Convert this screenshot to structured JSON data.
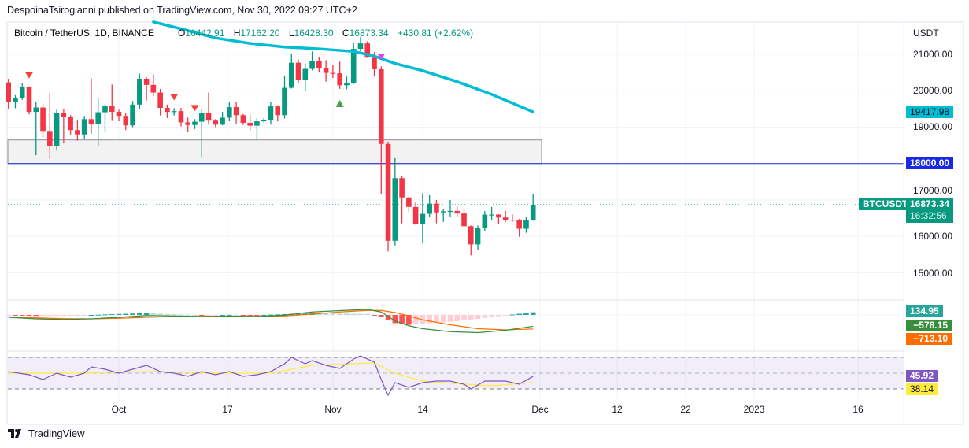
{
  "header": {
    "published": "DespoinaTsirogianni published on TradingView.com, Nov 30, 2022 09:27 UTC+2"
  },
  "legend": {
    "symbol": "Bitcoin / TetherUS, 1D, BINANCE",
    "o_label": "O",
    "o": "16442.91",
    "h_label": "H",
    "h": "17162.20",
    "l_label": "L",
    "l": "16428.30",
    "c_label": "C",
    "c": "16873.34",
    "change": "+430.81 (+2.62%)"
  },
  "axis": {
    "currency": "USDT",
    "price_ticks": [
      "21000.00",
      "20000.00",
      "19000.00",
      "17000.00",
      "16000.00",
      "15000.00"
    ],
    "date_ticks": [
      "Oct",
      "17",
      "Nov",
      "14",
      "Dec",
      "12",
      "22",
      "2023",
      "16"
    ]
  },
  "badges": {
    "ma": "19417.98",
    "level": "18000.00",
    "symbol": "BTCUSDT",
    "price": "16873.34",
    "countdown": "16:32:56",
    "macd_hist": "134.95",
    "macd": "−578.15",
    "macd_signal": "−713.10",
    "rsi": "45.92",
    "rsi_ma": "38.14"
  },
  "colors": {
    "up": "#089981",
    "down": "#f23645",
    "ma": "#00bcd4",
    "level": "#1929e6",
    "macd": "#388e3c",
    "signal": "#ff6d00",
    "rsi": "#7e57c2",
    "rsi_ma": "#ffeb3b",
    "hist_up": "#26a69a",
    "hist_down": "#ff5252"
  },
  "footer": {
    "brand": "TradingView"
  },
  "chart_data": {
    "type": "candlestick",
    "title": "Bitcoin / TetherUS, 1D, BINANCE",
    "start_date": "2022-09-15",
    "ylabel": "USDT",
    "ylim": [
      14500,
      21900
    ],
    "open": [
      20230,
      19700,
      19800,
      20110,
      19420,
      19540,
      18875,
      18480,
      19400,
      19290,
      18920,
      18800,
      19220,
      19080,
      19410,
      19590,
      19420,
      19310,
      19050,
      19620,
      20330,
      20160,
      19950,
      19530,
      19420,
      19440,
      19130,
      19060,
      19150,
      19380,
      19180,
      19070,
      19260,
      19550,
      19330,
      19120,
      19040,
      19160,
      19200,
      19570,
      19330,
      20080,
      20770,
      20290,
      20600,
      20810,
      20630,
      20490,
      20480,
      20150,
      20210,
      21150,
      21300,
      20910,
      20590,
      18540,
      15880,
      17600,
      17070,
      16810,
      16330,
      16620,
      16900,
      16660,
      16690,
      16700,
      16630,
      16280,
      15780,
      16230,
      16600,
      16600,
      16520,
      16460,
      16440,
      16210,
      16442.91
    ],
    "high": [
      20330,
      19880,
      20210,
      20120,
      19680,
      19640,
      19950,
      19480,
      19500,
      19330,
      19180,
      19310,
      20340,
      19790,
      19640,
      20170,
      19480,
      19400,
      19720,
      20470,
      20370,
      20450,
      20050,
      19620,
      19520,
      19530,
      19260,
      19220,
      19500,
      19950,
      19220,
      19420,
      19680,
      19700,
      19360,
      19350,
      19250,
      19250,
      19700,
      19600,
      20420,
      21020,
      20860,
      20750,
      21080,
      20930,
      20840,
      20700,
      20800,
      20390,
      21300,
      21480,
      21360,
      21060,
      20670,
      18600,
      18150,
      17650,
      17090,
      16950,
      17190,
      17130,
      17000,
      16750,
      17000,
      16820,
      16730,
      16300,
      16300,
      16700,
      16810,
      16610,
      16700,
      16600,
      16480,
      16530,
      17162.2
    ],
    "low": [
      19500,
      19520,
      19750,
      19350,
      18230,
      18720,
      18130,
      18360,
      18560,
      18800,
      18630,
      18680,
      18820,
      18470,
      18850,
      19170,
      19160,
      18920,
      19000,
      19500,
      19730,
      19850,
      19320,
      19250,
      19320,
      19020,
      18860,
      18950,
      18190,
      19070,
      19000,
      19050,
      19160,
      19100,
      19060,
      18900,
      18650,
      19130,
      19070,
      19160,
      19240,
      20060,
      20200,
      20000,
      20560,
      20500,
      20250,
      20350,
      20050,
      20040,
      20180,
      21080,
      20900,
      20390,
      17170,
      15590,
      15750,
      16360,
      16670,
      16320,
      15820,
      16530,
      16360,
      16400,
      16540,
      16540,
      16260,
      15480,
      15620,
      16160,
      16460,
      16350,
      16400,
      16400,
      15990,
      16100,
      16428.3
    ],
    "close": [
      19700,
      19800,
      20110,
      19420,
      19540,
      18875,
      18480,
      19400,
      19290,
      18920,
      18800,
      19220,
      19080,
      19410,
      19590,
      19420,
      19310,
      19050,
      19620,
      20330,
      20160,
      19950,
      19530,
      19420,
      19440,
      19130,
      19060,
      19150,
      19380,
      19180,
      19070,
      19260,
      19550,
      19330,
      19120,
      19040,
      19160,
      19200,
      19570,
      19330,
      20080,
      20770,
      20290,
      20600,
      20810,
      20630,
      20490,
      20480,
      20150,
      20210,
      21150,
      21300,
      20910,
      20590,
      18540,
      15880,
      17600,
      17070,
      16810,
      16330,
      16620,
      16900,
      16660,
      16690,
      16700,
      16630,
      16280,
      15780,
      16230,
      16600,
      16600,
      16520,
      16460,
      16440,
      16210,
      16440,
      16873.34
    ],
    "moving_average": {
      "index": [
        21,
        25,
        30,
        35,
        40,
        45,
        50,
        53,
        56,
        60,
        65,
        70,
        76
      ],
      "value": [
        21890,
        21700,
        21450,
        21300,
        21200,
        21150,
        21080,
        20950,
        20750,
        20550,
        20250,
        19900,
        19417.98
      ]
    },
    "horizontal_level": 18000,
    "zone": [
      18000,
      18650
    ],
    "signals": [
      {
        "index": 3,
        "type": "sell"
      },
      {
        "index": 24,
        "type": "sell"
      },
      {
        "index": 27,
        "type": "sell"
      },
      {
        "index": 48,
        "type": "buy"
      },
      {
        "index": 54,
        "type": "exit"
      }
    ],
    "macd": {
      "index": [
        0,
        4,
        8,
        12,
        16,
        20,
        24,
        28,
        32,
        36,
        40,
        44,
        48,
        52,
        54,
        56,
        58,
        60,
        64,
        68,
        72,
        76
      ],
      "macd": [
        -120,
        -200,
        -230,
        -200,
        -120,
        -30,
        -50,
        -80,
        -60,
        -80,
        -10,
        150,
        220,
        280,
        150,
        -300,
        -550,
        -700,
        -850,
        -900,
        -780,
        -578.15
      ],
      "signal": [
        -100,
        -150,
        -190,
        -200,
        -170,
        -120,
        -80,
        -70,
        -65,
        -70,
        -50,
        40,
        150,
        230,
        230,
        120,
        -50,
        -250,
        -500,
        -700,
        -760,
        -713.1
      ],
      "histogram_last": 134.95
    },
    "rsi": {
      "index": [
        0,
        3,
        5,
        7,
        9,
        11,
        12,
        14,
        16,
        18,
        20,
        22,
        24,
        26,
        28,
        30,
        32,
        34,
        36,
        38,
        40,
        41,
        43,
        44,
        46,
        48,
        50,
        51,
        53,
        54,
        55,
        56,
        58,
        60,
        62,
        64,
        66,
        67,
        69,
        72,
        74,
        76
      ],
      "value": [
        52,
        48,
        42,
        50,
        45,
        50,
        58,
        55,
        50,
        55,
        60,
        52,
        50,
        46,
        52,
        48,
        52,
        46,
        48,
        52,
        62,
        70,
        62,
        66,
        60,
        56,
        68,
        72,
        64,
        42,
        22,
        38,
        32,
        38,
        40,
        40,
        36,
        30,
        40,
        40,
        36,
        45.92
      ],
      "ma_index": [
        0,
        10,
        20,
        30,
        38,
        44,
        50,
        53,
        56,
        60,
        66,
        70,
        76
      ],
      "ma_value": [
        50,
        50,
        52,
        50,
        50,
        60,
        62,
        63,
        50,
        40,
        36,
        34,
        38.14
      ],
      "bands": [
        70,
        50,
        30
      ]
    }
  }
}
